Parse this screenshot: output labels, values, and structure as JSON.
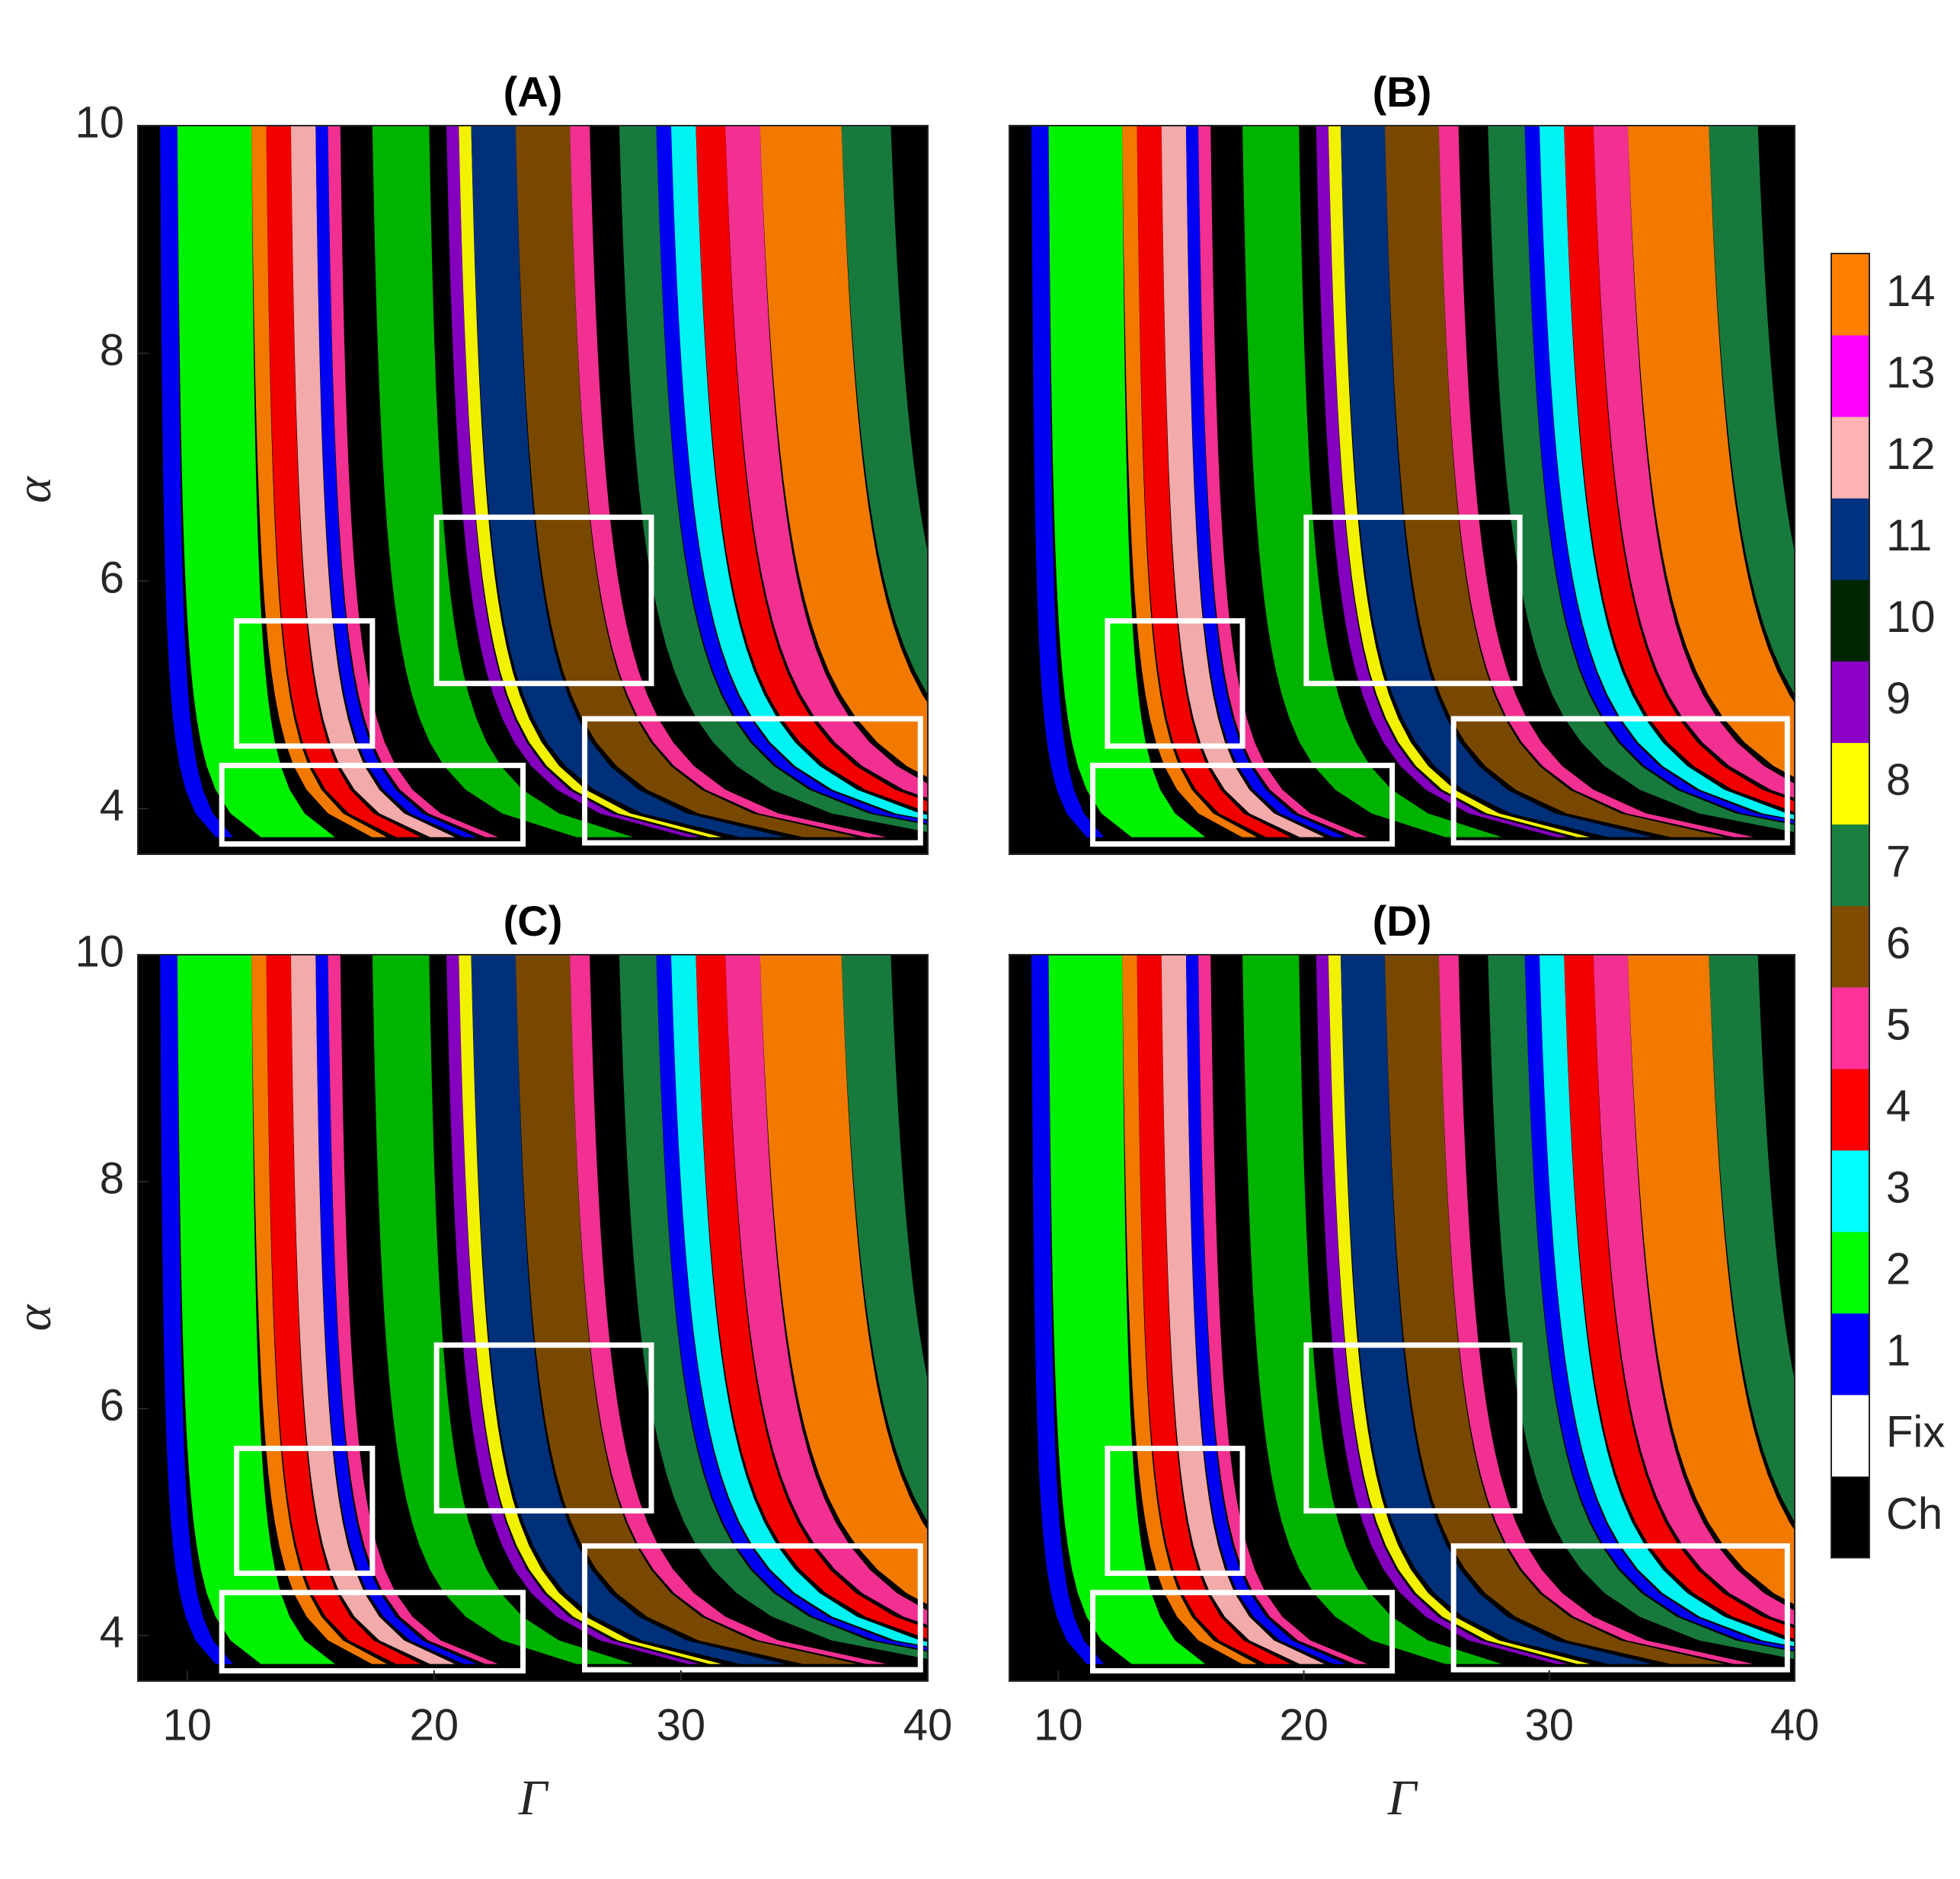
{
  "chart_data": [
    {
      "type": "heatmap",
      "title": "(A)",
      "ylabel": "α",
      "xlim": [
        8,
        40
      ],
      "ylim": [
        3.6,
        10
      ],
      "yticks": [
        4,
        6,
        8,
        10
      ],
      "boxes": [
        [
          12.0,
          17.5,
          4.55,
          5.65
        ],
        [
          11.4,
          23.6,
          3.69,
          4.38
        ],
        [
          20.1,
          28.8,
          5.1,
          6.56
        ],
        [
          26.1,
          39.7,
          3.7,
          4.79
        ]
      ]
    },
    {
      "type": "heatmap",
      "title": "(B)",
      "xlim": [
        8,
        40
      ],
      "ylim": [
        3.6,
        10
      ],
      "boxes": [
        [
          12.0,
          17.5,
          4.55,
          5.65
        ],
        [
          11.4,
          23.6,
          3.69,
          4.38
        ],
        [
          20.1,
          28.8,
          5.1,
          6.56
        ],
        [
          26.1,
          39.7,
          3.7,
          4.79
        ]
      ]
    },
    {
      "type": "heatmap",
      "title": "(C)",
      "xlabel": "Γ",
      "ylabel": "α",
      "xlim": [
        8,
        40
      ],
      "ylim": [
        3.6,
        10
      ],
      "xticks": [
        10,
        20,
        30,
        40
      ],
      "yticks": [
        4,
        6,
        8,
        10
      ],
      "boxes": [
        [
          12.0,
          17.5,
          4.55,
          5.65
        ],
        [
          11.4,
          23.6,
          3.69,
          4.38
        ],
        [
          20.1,
          28.8,
          5.1,
          6.56
        ],
        [
          26.1,
          39.7,
          3.7,
          4.79
        ]
      ]
    },
    {
      "type": "heatmap",
      "title": "(D)",
      "xlabel": "Γ",
      "xlim": [
        8,
        40
      ],
      "ylim": [
        3.6,
        10
      ],
      "xticks": [
        10,
        20,
        30,
        40
      ],
      "boxes": [
        [
          12.0,
          17.5,
          4.55,
          5.65
        ],
        [
          11.4,
          23.6,
          3.69,
          4.38
        ],
        [
          20.1,
          28.8,
          5.1,
          6.56
        ],
        [
          26.1,
          39.7,
          3.7,
          4.79
        ]
      ]
    }
  ],
  "colorbar": {
    "categories": [
      "Ch",
      "Fix",
      "1",
      "2",
      "3",
      "4",
      "5",
      "6",
      "7",
      "8",
      "9",
      "10",
      "11",
      "12",
      "13",
      "14"
    ],
    "colors": [
      "#000000",
      "#ffffff",
      "#0000ff",
      "#00ff00",
      "#00ffff",
      "#ff0000",
      "#ff3399",
      "#7f4c00",
      "#198040",
      "#ffff00",
      "#8c00c8",
      "#002600",
      "#003380",
      "#ffb3b3",
      "#ff00ff",
      "#ff8000"
    ]
  }
}
